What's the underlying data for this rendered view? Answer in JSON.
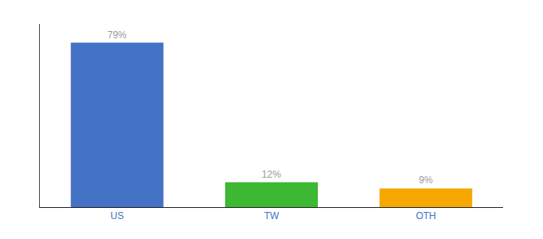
{
  "chart_data": {
    "type": "bar",
    "categories": [
      "US",
      "TW",
      "OTH"
    ],
    "values": [
      79,
      12,
      9
    ],
    "value_labels": [
      "79%",
      "12%",
      "9%"
    ],
    "colors": [
      "#4472c4",
      "#3cb832",
      "#f5a800"
    ],
    "ylim": [
      0,
      88
    ],
    "grid": false,
    "tick_labels": "x",
    "data_labels": true
  }
}
